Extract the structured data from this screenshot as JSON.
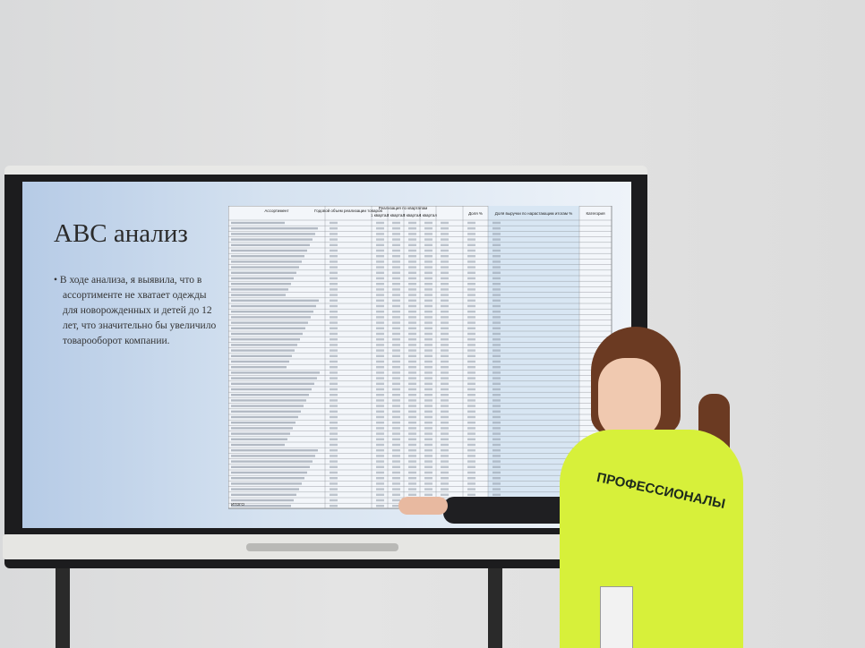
{
  "slide": {
    "title": "АВС анализ",
    "bullet": "В ходе анализа, я выявила, что в ассортименте не хватает одежды для новорожденных и детей до 12 лет, что значительно бы увеличило товарооборот компании.",
    "table": {
      "headers": [
        "Ассортимент",
        "Годовой объем реализации товаров",
        "Реализация по кварталам",
        "1 квартал",
        "2 квартал",
        "3 квартал",
        "4 квартал",
        "Доля %",
        "Доля выручки по нарастающим итогам %",
        "Категория"
      ],
      "total_label": "ИТОГО"
    }
  },
  "shirt": {
    "text": "ПРОФЕССИОНАЛЫ"
  }
}
